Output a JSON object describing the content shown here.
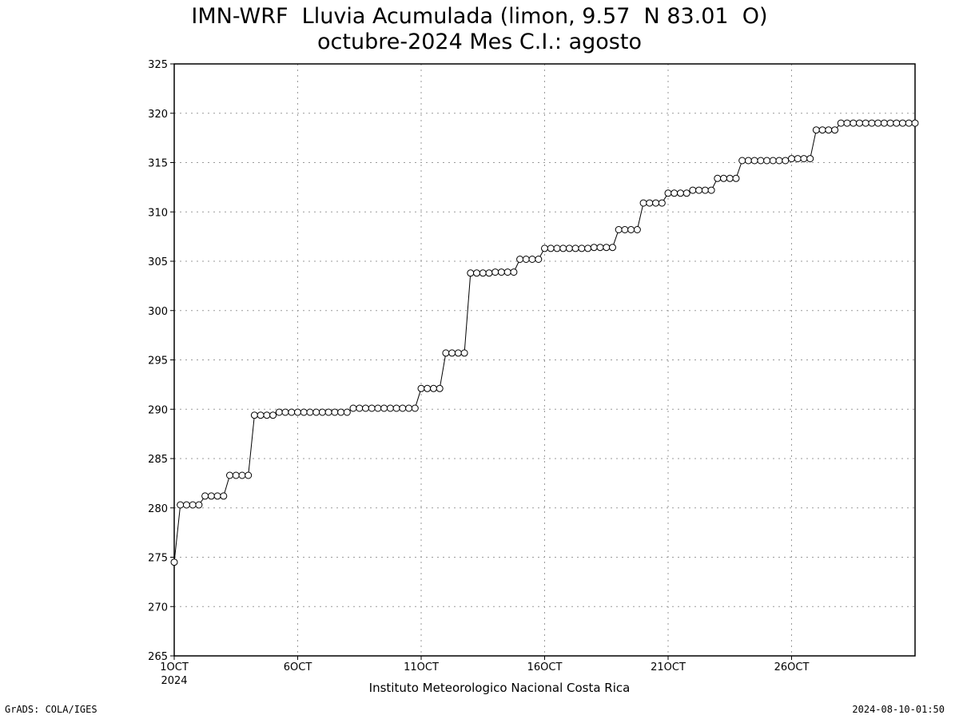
{
  "chart_data": {
    "type": "line",
    "title": "IMN-WRF  Lluvia Acumulada (limon, 9.57  N 83.01  O)",
    "subtitle": "octubre-2024 Mes C.I.: agosto",
    "xlabel": "",
    "ylabel": "",
    "x_unit": "day of October 2024",
    "xlim": [
      1,
      31
    ],
    "ylim": [
      265,
      325
    ],
    "y_ticks": [
      265,
      270,
      275,
      280,
      285,
      290,
      295,
      300,
      305,
      310,
      315,
      320,
      325
    ],
    "x_ticks": [
      {
        "x": 1,
        "label": "1OCT",
        "sublabel": "2024"
      },
      {
        "x": 6,
        "label": "6OCT"
      },
      {
        "x": 11,
        "label": "11OCT"
      },
      {
        "x": 16,
        "label": "16OCT"
      },
      {
        "x": 21,
        "label": "21OCT"
      },
      {
        "x": 26,
        "label": "26OCT"
      }
    ],
    "grid": true,
    "marker": "open-circle",
    "series": [
      {
        "step_days": 0.25,
        "values": [
          274.5,
          280.3,
          280.3,
          280.3,
          280.3,
          281.2,
          281.2,
          281.2,
          281.2,
          283.3,
          283.3,
          283.3,
          283.3,
          289.4,
          289.4,
          289.4,
          289.4,
          289.7,
          289.7,
          289.7,
          289.7,
          289.7,
          289.7,
          289.7,
          289.7,
          289.7,
          289.7,
          289.7,
          289.7,
          290.1,
          290.1,
          290.1,
          290.1,
          290.1,
          290.1,
          290.1,
          290.1,
          290.1,
          290.1,
          290.1,
          292.1,
          292.1,
          292.1,
          292.1,
          295.7,
          295.7,
          295.7,
          295.7,
          303.8,
          303.8,
          303.8,
          303.8,
          303.9,
          303.9,
          303.9,
          303.9,
          305.2,
          305.2,
          305.2,
          305.2,
          306.3,
          306.3,
          306.3,
          306.3,
          306.3,
          306.3,
          306.3,
          306.3,
          306.4,
          306.4,
          306.4,
          306.4,
          308.2,
          308.2,
          308.2,
          308.2,
          310.9,
          310.9,
          310.9,
          310.9,
          311.9,
          311.9,
          311.9,
          311.9,
          312.2,
          312.2,
          312.2,
          312.2,
          313.4,
          313.4,
          313.4,
          313.4,
          315.2,
          315.2,
          315.2,
          315.2,
          315.2,
          315.2,
          315.2,
          315.2,
          315.4,
          315.4,
          315.4,
          315.4,
          318.3,
          318.3,
          318.3,
          318.3,
          319.0,
          319.0,
          319.0,
          319.0,
          319.0,
          319.0,
          319.0,
          319.0,
          319.0,
          319.0,
          319.0,
          319.0,
          319.0
        ]
      }
    ]
  },
  "credit": "Instituto Meteorologico Nacional Costa Rica",
  "footer": {
    "left": "GrADS: COLA/IGES",
    "right": "2024-08-10-01:50"
  }
}
